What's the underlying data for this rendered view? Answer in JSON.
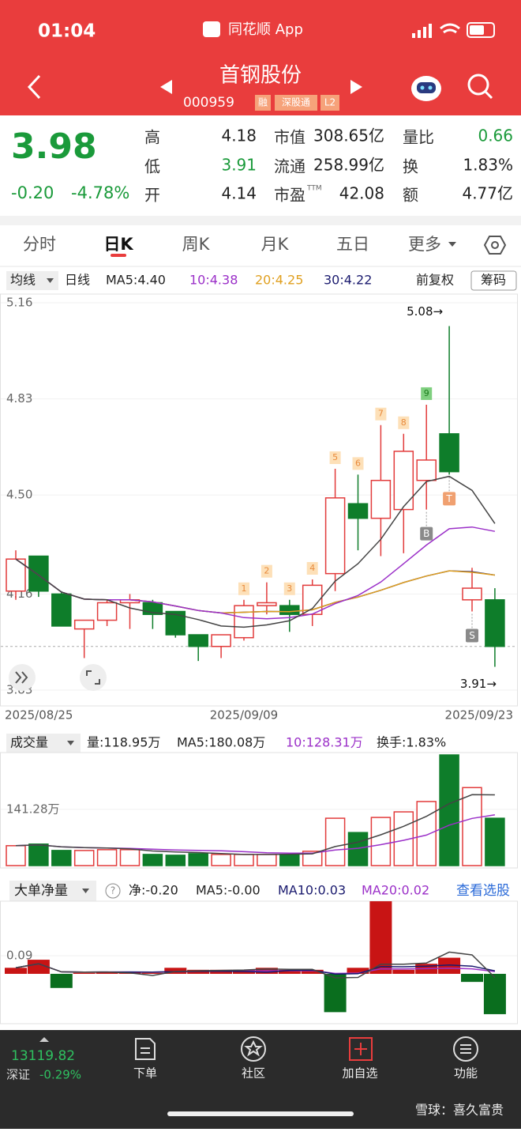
{
  "status_bar": {
    "time": "01:04",
    "app": "同花顺 App"
  },
  "header": {
    "title": "首钢股份",
    "code": "000959",
    "badges": [
      "融",
      "深股通",
      "L2"
    ]
  },
  "quote": {
    "price": "3.98",
    "change": "-0.20",
    "change_pct": "-4.78%",
    "high_label": "高",
    "high": "4.18",
    "low_label": "低",
    "low": "3.91",
    "open_label": "开",
    "open": "4.14",
    "mcap_label": "市值",
    "mcap": "308.65亿",
    "float_label": "流通",
    "float": "258.99亿",
    "pe_label": "市盈",
    "pe_sup": "TTM",
    "pe": "42.08",
    "vr_label": "量比",
    "vr": "0.66",
    "turnover_label": "换",
    "turnover": "1.83%",
    "amount_label": "额",
    "amount": "4.77亿"
  },
  "tabs": [
    "分时",
    "日K",
    "周K",
    "月K",
    "五日",
    "更多"
  ],
  "kline": {
    "ma_selector": "均线",
    "period": "日线",
    "ma": [
      "MA5:4.40",
      "10:4.38",
      "20:4.25",
      "30:4.22"
    ],
    "adjust": "前复权",
    "chips": "筹码",
    "ylim": [
      3.83,
      5.16
    ],
    "yticks": [
      5.16,
      4.83,
      {
        "value": 4.5,
        "label": "4.50"
      },
      4.16,
      3.83
    ],
    "high_label": "5.08→",
    "low_label": "3.91→",
    "candles": [
      {
        "date": "2025/08/25",
        "open": 4.17,
        "high": 4.31,
        "low": 4.14,
        "close": 4.28,
        "volume": 50,
        "net": 0.03
      },
      {
        "open": 4.29,
        "high": 4.29,
        "low": 4.15,
        "close": 4.17,
        "volume": 54,
        "net": 0.07
      },
      {
        "open": 4.16,
        "high": 4.17,
        "low": 4.05,
        "close": 4.05,
        "volume": 38,
        "net": -0.07
      },
      {
        "open": 4.04,
        "high": 4.07,
        "low": 3.94,
        "close": 4.07,
        "volume": 38,
        "net": 0.005
      },
      {
        "open": 4.07,
        "high": 4.14,
        "low": 4.05,
        "close": 4.13,
        "volume": 40,
        "net": 0.01
      },
      {
        "open": 4.13,
        "high": 4.16,
        "low": 4.04,
        "close": 4.14,
        "volume": 40,
        "net": 0.01
      },
      {
        "open": 4.13,
        "high": 4.14,
        "low": 4.04,
        "close": 4.09,
        "volume": 28,
        "net": 0.005
      },
      {
        "open": 4.1,
        "high": 4.1,
        "low": 4.01,
        "close": 4.02,
        "volume": 26,
        "net": 0.03
      },
      {
        "open": 4.02,
        "high": 4.02,
        "low": 3.93,
        "close": 3.98,
        "volume": 30,
        "net": 0.02
      },
      {
        "open": 3.98,
        "high": 4.02,
        "low": 3.94,
        "close": 4.02,
        "volume": 28,
        "net": 0.02
      },
      {
        "date": "2025/09/09",
        "open": 4.01,
        "high": 4.14,
        "low": 4.0,
        "close": 4.12,
        "volume": 28,
        "net": 0.02,
        "tag": "1"
      },
      {
        "open": 4.12,
        "high": 4.2,
        "low": 4.09,
        "close": 4.13,
        "volume": 28,
        "net": 0.03,
        "tag": "2"
      },
      {
        "open": 4.12,
        "high": 4.14,
        "low": 4.03,
        "close": 4.09,
        "volume": 28,
        "net": 0.02,
        "tag": "3"
      },
      {
        "open": 4.09,
        "high": 4.21,
        "low": 4.05,
        "close": 4.19,
        "volume": 36,
        "net": 0.02,
        "tag": "4"
      },
      {
        "open": 4.23,
        "high": 4.59,
        "low": 4.17,
        "close": 4.49,
        "volume": 119,
        "net": -0.19,
        "tag": "5"
      },
      {
        "open": 4.47,
        "high": 4.57,
        "low": 4.31,
        "close": 4.42,
        "volume": 83,
        "net": 0.03,
        "tag": "6"
      },
      {
        "open": 4.42,
        "high": 4.74,
        "low": 4.29,
        "close": 4.55,
        "volume": 121,
        "net": 0.36,
        "tag": "7"
      },
      {
        "open": 4.45,
        "high": 4.71,
        "low": 4.3,
        "close": 4.65,
        "volume": 135,
        "net": 0.02,
        "tag": "8"
      },
      {
        "open": 4.55,
        "high": 4.81,
        "low": 4.45,
        "close": 4.62,
        "volume": 161,
        "net": 0.05,
        "tag": "9",
        "tag_color": "#7fcf7f",
        "tag_below": "B",
        "tag_below_color": "#8a8a8a"
      },
      {
        "open": 4.71,
        "high": 5.08,
        "low": 4.57,
        "close": 4.58,
        "volume": 278,
        "net": 0.08,
        "tag_below": "T",
        "tag_below_color": "#f0a070"
      },
      {
        "open": 4.14,
        "high": 4.25,
        "low": 4.1,
        "close": 4.18,
        "volume": 196,
        "net": -0.04,
        "tag_below": "S",
        "tag_below_color": "#8a8a8a"
      },
      {
        "date": "2025/09/23",
        "open": 4.14,
        "high": 4.18,
        "low": 3.91,
        "close": 3.98,
        "volume": 118.95,
        "net": -0.2
      }
    ]
  },
  "volume": {
    "title": "成交量",
    "stats": [
      "量:118.95万",
      "MA5:180.08万",
      "10:128.31万",
      "换手:1.83%"
    ],
    "ylim": [
      0,
      286
    ],
    "yticks": [
      {
        "value": 141.28,
        "label": "141.28万"
      }
    ]
  },
  "flow": {
    "title": "大单净量",
    "help": "?",
    "stats": [
      "净:-0.20",
      "MA5:-0.00",
      "MA10:0.03",
      "MA20:0.02"
    ],
    "link": "查看选股",
    "ylim": [
      -0.23,
      0.38
    ],
    "yticks": [
      0.09
    ]
  },
  "bottom_bar": {
    "index_value": "13119.82",
    "index_name": "深证",
    "index_change": "-0.29%",
    "nav": [
      "下单",
      "社区",
      "加自选",
      "功能"
    ]
  },
  "watermark": "雪球：喜久富贵"
}
